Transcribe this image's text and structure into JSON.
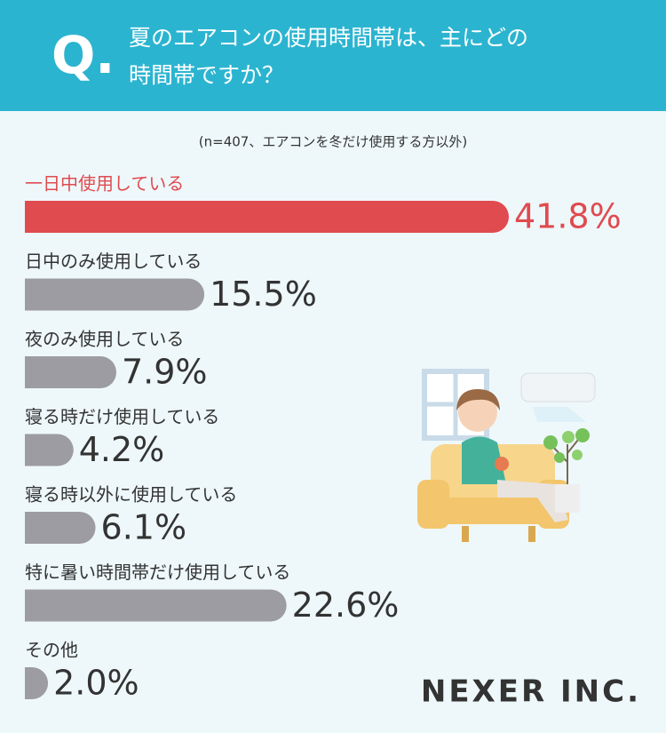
{
  "chart_data": {
    "type": "bar",
    "question_mark": "Q.",
    "title_lines": [
      "夏のエアコンの使用時間帯は、主にどの",
      "時間帯ですか？"
    ],
    "subtitle": "(n=407、エアコンを冬だけ使用する方以外)",
    "categories": [
      "一日中使用している",
      "日中のみ使用している",
      "夜のみ使用している",
      "寝る時だけ使用している",
      "寝る時以外に使用している",
      "特に暑い時間帯だけ使用している",
      "その他"
    ],
    "values": [
      41.8,
      15.5,
      7.9,
      4.2,
      6.1,
      22.6,
      2.0
    ],
    "value_labels": [
      "41.8%",
      "15.5%",
      "7.9%",
      "4.2%",
      "6.1%",
      "22.6%",
      "2.0%"
    ],
    "colors": [
      "#e04b4f",
      "#9c9ca2",
      "#9c9ca2",
      "#9c9ca2",
      "#9c9ca2",
      "#9c9ca2",
      "#9c9ca2"
    ],
    "logo": "NEXER INC."
  }
}
